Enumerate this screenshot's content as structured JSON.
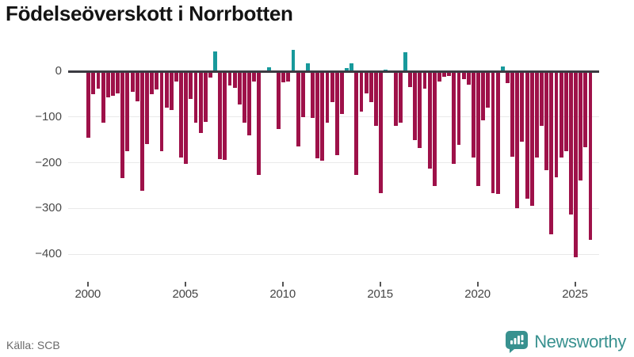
{
  "title": "Födelseöverskott i Norrbotten",
  "footer": {
    "source": "Källa: SCB"
  },
  "branding": {
    "name": "Newsworthy"
  },
  "colors": {
    "negative_bar": "#9e1149",
    "positive_bar": "#18999b",
    "zero_line": "#3b3b42",
    "gridline": "#e9e9e9",
    "axis_text": "#4a4a4a",
    "title_text": "#141414",
    "source_text": "#6a6a6a",
    "brand_teal": "#38918f"
  },
  "chart_data": {
    "type": "bar",
    "title": "Födelseöverskott i Norrbotten",
    "xlabel": "",
    "ylabel": "",
    "frequency": "quarterly",
    "start_year": 2000,
    "end_year": 2025,
    "x_ticks": [
      2000,
      2005,
      2010,
      2015,
      2020,
      2025
    ],
    "y_ticks": [
      0,
      -100,
      -200,
      -300,
      -400
    ],
    "ylim": [
      -430,
      55
    ],
    "grid": true,
    "legend": false,
    "values": [
      -145,
      -51,
      -38,
      -113,
      -57,
      -53,
      -49,
      -233,
      -174,
      -45,
      -65,
      -262,
      -160,
      -51,
      -40,
      -175,
      -80,
      -85,
      -22,
      -189,
      -202,
      -61,
      -113,
      -135,
      -111,
      -13,
      44,
      -192,
      -194,
      -32,
      -36,
      -73,
      -112,
      -140,
      -23,
      -227,
      -4,
      9,
      -2,
      -127,
      -25,
      -23,
      46,
      -164,
      -100,
      18,
      -102,
      -191,
      -195,
      -113,
      -67,
      -183,
      -94,
      7,
      17,
      -227,
      -89,
      -48,
      -67,
      -120,
      -267,
      4,
      -2,
      -119,
      -112,
      41,
      -34,
      -150,
      -167,
      -38,
      -212,
      -250,
      -22,
      -12,
      -10,
      -203,
      -161,
      -17,
      -29,
      -189,
      -250,
      -108,
      -79,
      -267,
      -268,
      10,
      -26,
      -186,
      -299,
      -154,
      -279,
      -294,
      -188,
      -119,
      -217,
      -357,
      -232,
      -188,
      -174,
      -314,
      -407,
      -238,
      -166,
      -369
    ]
  }
}
